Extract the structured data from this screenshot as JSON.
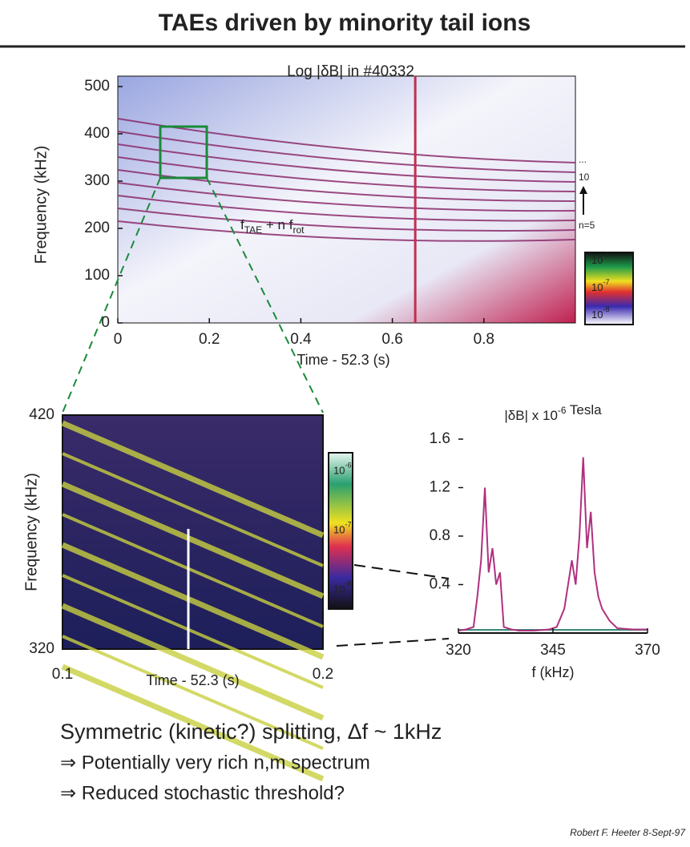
{
  "header": {
    "title": "TAEs driven by minority tail ions"
  },
  "chart_data": [
    {
      "type": "spectrogram",
      "title": "Log |δB| in #40332",
      "xlabel": "Time - 52.3 (s)",
      "ylabel": "Frequency (kHz)",
      "xlim": [
        0,
        1
      ],
      "ylim": [
        0,
        500
      ],
      "xticks": [
        0,
        0.2,
        0.4,
        0.6,
        0.8
      ],
      "yticks": [
        0,
        100,
        200,
        300,
        400,
        500
      ],
      "annotation": {
        "f": "f",
        "sub1": "TAE",
        "mid": " + n f",
        "sub2": "rot"
      },
      "mode_labels": [
        "...",
        "10",
        "n=5"
      ],
      "colorbar": [
        {
          "base": "10",
          "exp": "-6"
        },
        {
          "base": "10",
          "exp": "-7"
        },
        {
          "base": "10",
          "exp": "-8"
        }
      ]
    },
    {
      "type": "spectrogram",
      "xlabel": "Time - 52.3 (s)",
      "ylabel": "Frequency (kHz)",
      "xlim": [
        0.1,
        0.2
      ],
      "ylim": [
        320,
        420
      ],
      "xticks": [
        0.1,
        0.2
      ],
      "yticks": [
        320,
        420
      ],
      "colorbar": [
        {
          "base": "10",
          "exp": "-6"
        },
        {
          "base": "10",
          "exp": "-7"
        },
        {
          "base": "10",
          "exp": "-8"
        }
      ]
    },
    {
      "type": "line",
      "title": {
        "pre": "|δB| x ",
        "base": "10",
        "exp": "-6",
        "post": " Tesla"
      },
      "xlabel": "f (kHz)",
      "xlim": [
        320,
        370
      ],
      "ylim": [
        0,
        1.6
      ],
      "xticks": [
        320,
        345,
        370
      ],
      "yticks": [
        0.4,
        0.8,
        1.2,
        1.6
      ],
      "color": "#b0307f",
      "x": [
        320,
        322,
        324,
        325,
        326,
        327,
        328,
        329,
        330,
        331,
        332,
        334,
        336,
        340,
        344,
        346,
        348,
        350,
        351,
        352,
        353,
        354,
        355,
        356,
        357,
        358,
        360,
        362,
        366,
        370
      ],
      "values": [
        0.02,
        0.03,
        0.05,
        0.3,
        0.6,
        1.2,
        0.5,
        0.7,
        0.4,
        0.5,
        0.05,
        0.03,
        0.02,
        0.02,
        0.03,
        0.05,
        0.2,
        0.6,
        0.4,
        0.8,
        1.45,
        0.7,
        1.0,
        0.5,
        0.3,
        0.2,
        0.1,
        0.04,
        0.03,
        0.03
      ]
    }
  ],
  "bullets": [
    "Symmetric (kinetic?) splitting, Δf ~ 1kHz",
    "⇒ Potentially very rich n,m spectrum",
    "⇒ Reduced stochastic threshold?"
  ],
  "footer": "Robert F. Heeter 8-Sept-97"
}
